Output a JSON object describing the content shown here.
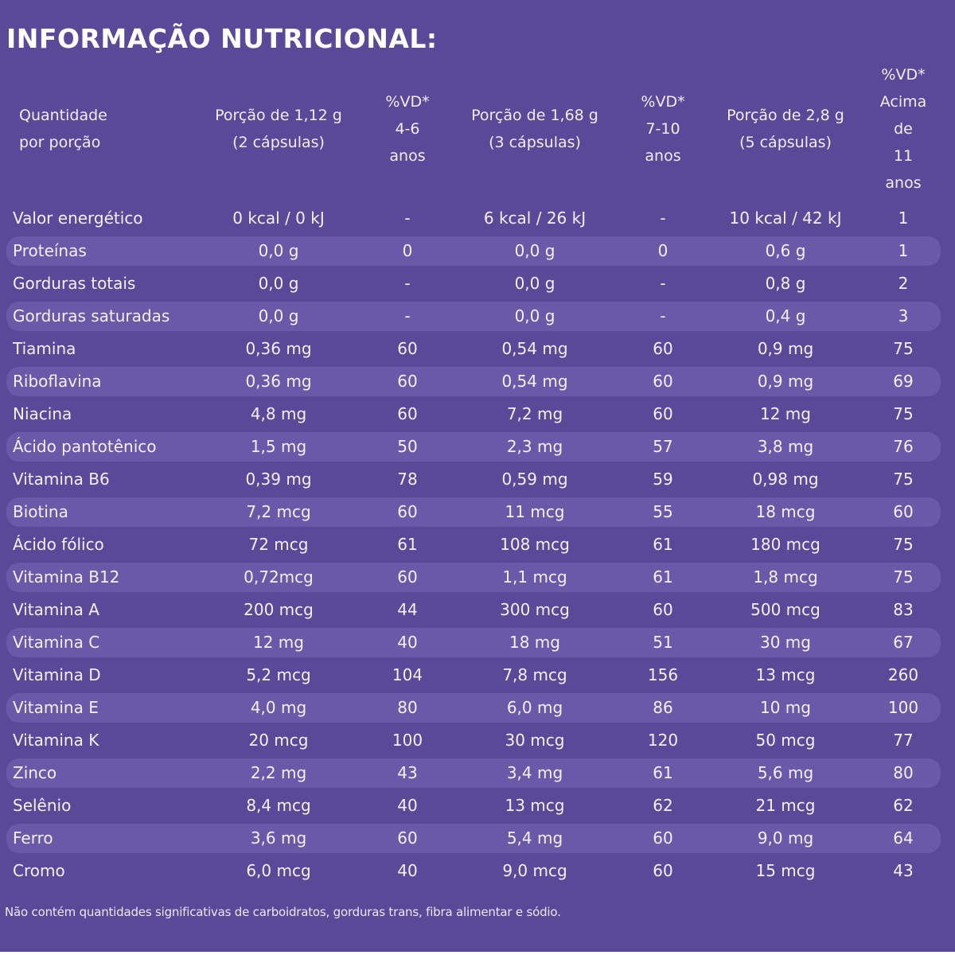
{
  "title": "INFORMAÇÃO NUTRICIONAL:",
  "header": {
    "quantity": [
      "Quantidade",
      "por porção"
    ],
    "portion_1": [
      "Porção de 1,12 g",
      "(2 cápsulas)"
    ],
    "vd_1": [
      "%VD*",
      "4-6",
      "anos"
    ],
    "portion_2": [
      "Porção de 1,68 g",
      "(3 cápsulas)"
    ],
    "vd_2": [
      "%VD*",
      "7-10",
      "anos"
    ],
    "portion_3": [
      "Porção de 2,8 g",
      "(5 cápsulas)"
    ],
    "vd_3": [
      "%VD*",
      "Acima",
      "de",
      "11",
      "anos"
    ]
  },
  "rows": [
    {
      "name": "Valor energético",
      "p1": "0 kcal / 0 kJ",
      "vd1": "-",
      "p2": "6 kcal / 26 kJ",
      "vd2": "-",
      "p3": "10 kcal / 42 kJ",
      "vd3": "1"
    },
    {
      "name": "Proteínas",
      "p1": "0,0 g",
      "vd1": "0",
      "p2": "0,0 g",
      "vd2": "0",
      "p3": "0,6 g",
      "vd3": "1"
    },
    {
      "name": "Gorduras totais",
      "p1": "0,0 g",
      "vd1": "-",
      "p2": "0,0 g",
      "vd2": "-",
      "p3": "0,8 g",
      "vd3": "2"
    },
    {
      "name": "Gorduras saturadas",
      "p1": "0,0 g",
      "vd1": "-",
      "p2": "0,0 g",
      "vd2": "-",
      "p3": "0,4 g",
      "vd3": "3"
    },
    {
      "name": "Tiamina",
      "p1": "0,36 mg",
      "vd1": "60",
      "p2": "0,54 mg",
      "vd2": "60",
      "p3": "0,9 mg",
      "vd3": "75"
    },
    {
      "name": "Riboflavina",
      "p1": "0,36 mg",
      "vd1": "60",
      "p2": "0,54 mg",
      "vd2": "60",
      "p3": "0,9 mg",
      "vd3": "69"
    },
    {
      "name": "Niacina",
      "p1": "4,8 mg",
      "vd1": "60",
      "p2": "7,2 mg",
      "vd2": "60",
      "p3": "12 mg",
      "vd3": "75"
    },
    {
      "name": "Ácido pantotênico",
      "p1": "1,5 mg",
      "vd1": "50",
      "p2": "2,3 mg",
      "vd2": "57",
      "p3": "3,8 mg",
      "vd3": "76"
    },
    {
      "name": "Vitamina B6",
      "p1": "0,39 mg",
      "vd1": "78",
      "p2": "0,59 mg",
      "vd2": "59",
      "p3": "0,98 mg",
      "vd3": "75"
    },
    {
      "name": "Biotina",
      "p1": "7,2 mcg",
      "vd1": "60",
      "p2": "11 mcg",
      "vd2": "55",
      "p3": "18 mcg",
      "vd3": "60"
    },
    {
      "name": "Ácido fólico",
      "p1": "72 mcg",
      "vd1": "61",
      "p2": "108 mcg",
      "vd2": "61",
      "p3": "180 mcg",
      "vd3": "75"
    },
    {
      "name": "Vitamina B12",
      "p1": "0,72mcg",
      "vd1": "60",
      "p2": "1,1 mcg",
      "vd2": "61",
      "p3": "1,8 mcg",
      "vd3": "75"
    },
    {
      "name": "Vitamina A",
      "p1": "200 mcg",
      "vd1": "44",
      "p2": "300 mcg",
      "vd2": "60",
      "p3": "500 mcg",
      "vd3": "83"
    },
    {
      "name": "Vitamina C",
      "p1": "12 mg",
      "vd1": "40",
      "p2": "18 mg",
      "vd2": "51",
      "p3": "30 mg",
      "vd3": "67"
    },
    {
      "name": "Vitamina D",
      "p1": "5,2 mcg",
      "vd1": "104",
      "p2": "7,8 mcg",
      "vd2": "156",
      "p3": "13 mcg",
      "vd3": "260"
    },
    {
      "name": "Vitamina E",
      "p1": "4,0 mg",
      "vd1": "80",
      "p2": "6,0 mg",
      "vd2": "86",
      "p3": "10 mg",
      "vd3": "100"
    },
    {
      "name": "Vitamina K",
      "p1": "20 mcg",
      "vd1": "100",
      "p2": "30 mcg",
      "vd2": "120",
      "p3": "50 mcg",
      "vd3": "77"
    },
    {
      "name": "Zinco",
      "p1": "2,2 mg",
      "vd1": "43",
      "p2": "3,4 mg",
      "vd2": "61",
      "p3": "5,6 mg",
      "vd3": "80"
    },
    {
      "name": "Selênio",
      "p1": "8,4 mcg",
      "vd1": "40",
      "p2": "13 mcg",
      "vd2": "62",
      "p3": "21 mcg",
      "vd3": "62"
    },
    {
      "name": "Ferro",
      "p1": "3,6 mg",
      "vd1": "60",
      "p2": "5,4 mg",
      "vd2": "60",
      "p3": "9,0 mg",
      "vd3": "64"
    },
    {
      "name": "Cromo",
      "p1": "6,0 mcg",
      "vd1": "40",
      "p2": "9,0 mcg",
      "vd2": "60",
      "p3": "15 mcg",
      "vd3": "43"
    }
  ],
  "footnote": "Não contém quantidades significativas de carboidratos, gorduras trans, fibra alimentar e sódio.",
  "colors": {
    "background": "#5a4898",
    "stripe": "#6a58a8",
    "text": "#ffffff"
  }
}
